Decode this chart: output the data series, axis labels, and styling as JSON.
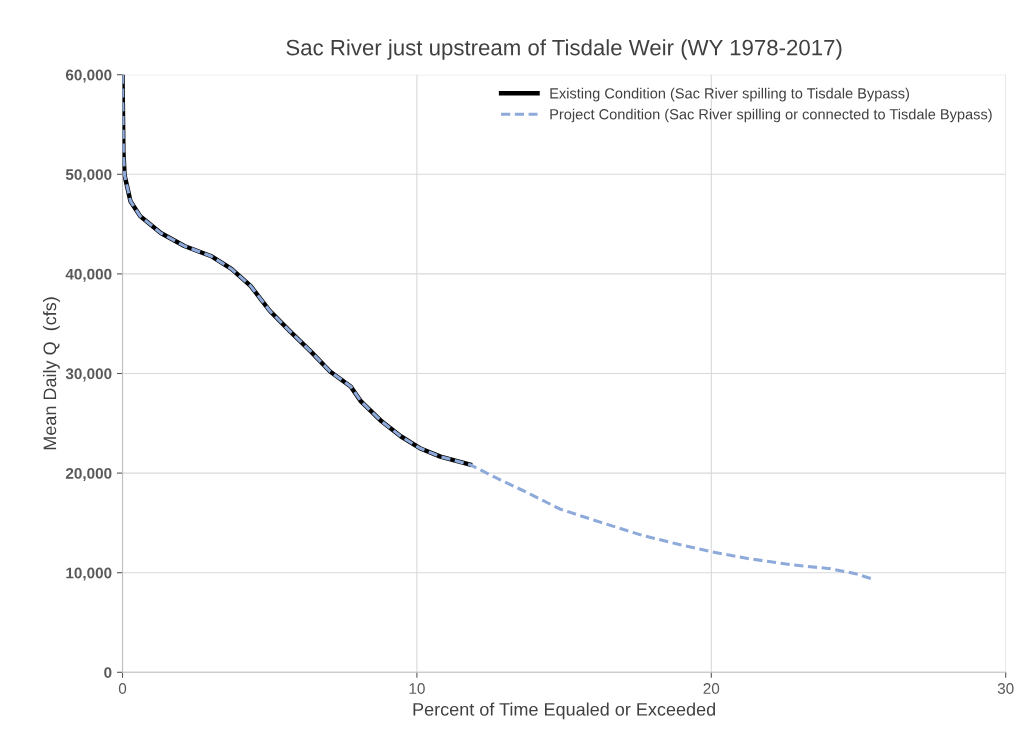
{
  "chart_data": {
    "type": "line",
    "title": "Sac River just upstream of Tisdale Weir (WY 1978-2017)",
    "xlabel": "Percent of Time Equaled or Exceeded",
    "ylabel": "Mean Daily Q  (cfs)",
    "xlim": [
      0,
      30
    ],
    "xticks": [
      0,
      10,
      20,
      30
    ],
    "ylim": [
      0,
      60000
    ],
    "yticks": [
      {
        "value": 0,
        "label": "0"
      },
      {
        "value": 10000,
        "label": "10,000"
      },
      {
        "value": 20000,
        "label": "20,000"
      },
      {
        "value": 30000,
        "label": "30,000"
      },
      {
        "value": 40000,
        "label": "40,000"
      },
      {
        "value": 50000,
        "label": "50,000"
      },
      {
        "value": 60000,
        "label": "60,000"
      }
    ],
    "grid": true,
    "legend": "top right",
    "series": [
      {
        "name": "Existing Condition (Sac River spilling to Tisdale Bypass)",
        "color": "#000000",
        "line_style": "solid",
        "x": [
          0,
          0.03,
          0.07,
          0.27,
          0.6,
          1.3,
          2.1,
          3.0,
          3.7,
          4.35,
          5.0,
          5.7,
          6.4,
          7.05,
          7.75,
          8.1,
          8.8,
          9.45,
          10.1,
          10.8,
          11.8
        ],
        "values": [
          60000,
          52300,
          49900,
          47300,
          45800,
          44100,
          42800,
          41800,
          40500,
          38800,
          36300,
          34200,
          32200,
          30200,
          28700,
          27200,
          25200,
          23700,
          22500,
          21650,
          20850
        ]
      },
      {
        "name": "Project Condition (Sac River spilling or connected to Tisdale Bypass)",
        "color": "#8eaadb",
        "line_style": "dashed",
        "x": [
          0,
          0.03,
          0.07,
          0.27,
          0.6,
          1.3,
          2.1,
          3.0,
          3.7,
          4.35,
          5.0,
          5.7,
          6.4,
          7.05,
          7.75,
          8.1,
          8.8,
          9.45,
          10.1,
          10.8,
          11.8,
          12.85,
          13.85,
          14.85,
          16.2,
          17.6,
          18.95,
          20,
          21.3,
          22.7,
          24.05,
          24.9,
          25.55
        ],
        "values": [
          60000,
          52300,
          49900,
          47300,
          45800,
          44100,
          42800,
          41800,
          40500,
          38800,
          36300,
          34200,
          32200,
          30200,
          28700,
          27200,
          25200,
          23700,
          22500,
          21650,
          20850,
          19300,
          17900,
          16400,
          15100,
          13800,
          12800,
          12100,
          11400,
          10800,
          10400,
          9900,
          9300
        ]
      }
    ]
  }
}
